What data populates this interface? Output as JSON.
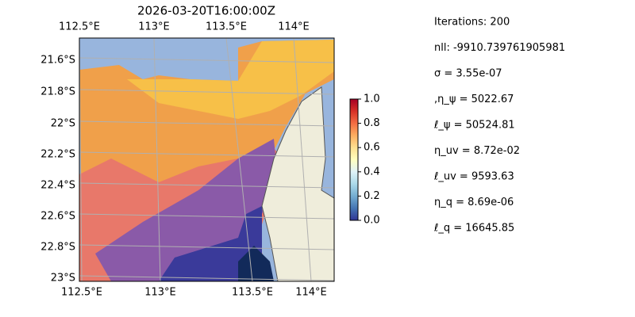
{
  "title": "2026-03-20T16:00:00Z",
  "map": {
    "top_lon_labels": [
      "112.5°E",
      "113°E",
      "113.5°E",
      "114°E"
    ],
    "bottom_lon_labels": [
      "112.5°E",
      "113°E",
      "113.5°E",
      "114°E"
    ],
    "lat_labels": [
      "21.6°S",
      "21.8°S",
      "22°S",
      "22.2°S",
      "22.4°S",
      "22.6°S",
      "22.8°S",
      "23°S"
    ]
  },
  "colorbar": {
    "clim": [
      0,
      1
    ],
    "cmap": [
      "#313695",
      "#4575b4",
      "#74add1",
      "#abd9e9",
      "#e0f3f8",
      "#ffffbf",
      "#fee090",
      "#fdae61",
      "#f46d43",
      "#d73027",
      "#a50026"
    ],
    "ticks": [
      {
        "value": 0,
        "label": "0.0"
      },
      0.2,
      0.4,
      0.6,
      0.8,
      {
        "value": 1,
        "label": "1.0"
      }
    ]
  },
  "stats": [
    "Iterations: 200",
    "nll: -9910.739761905981",
    "σ = 3.55e-07",
    ",η_ψ = 5022.67",
    "ℓ_ψ = 50524.81",
    "η_uv = 8.72e-02",
    "ℓ_uv = 9593.63",
    "η_q = 8.69e-06",
    "ℓ_q = 16645.85"
  ]
}
